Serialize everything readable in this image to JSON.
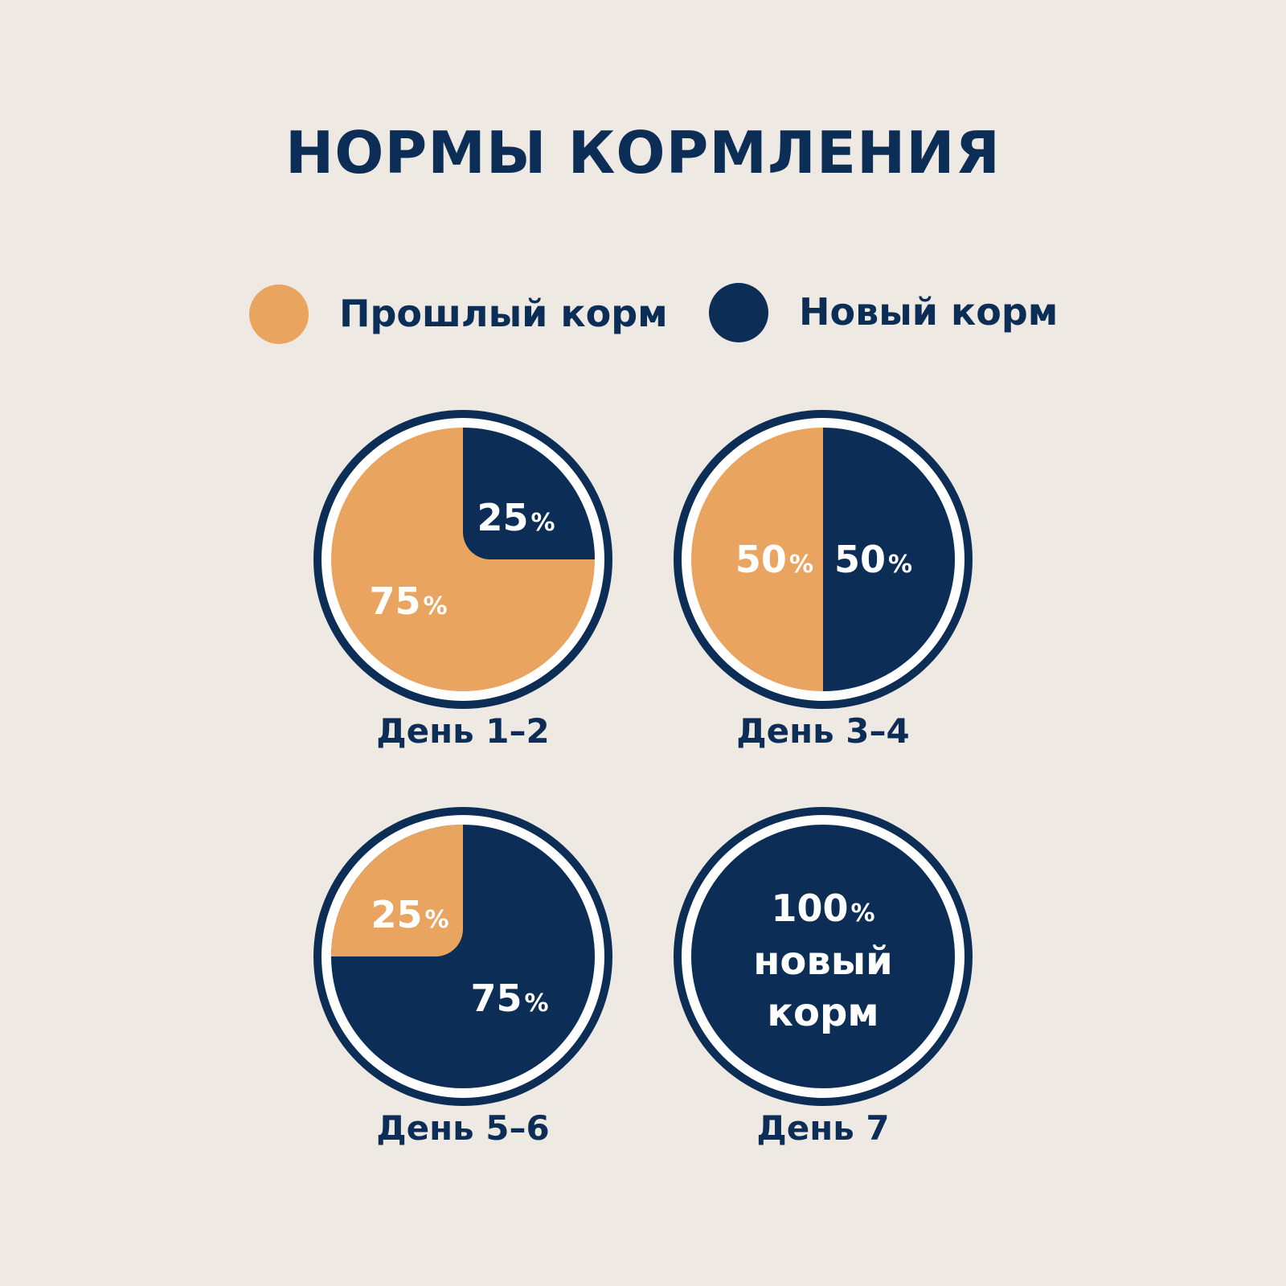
{
  "title": "НОРМЫ КОРМЛЕНИЯ",
  "colors": {
    "background": "#EEEAE3",
    "old_food": "#E9A45F",
    "new_food": "#0B2D56",
    "text_on_pie": "#FFFFFF"
  },
  "legend": [
    {
      "label": "Прошлый корм",
      "color": "#E9A45F"
    },
    {
      "label": "Новый корм",
      "color": "#0B2D56"
    }
  ],
  "chart_data": [
    {
      "type": "pie",
      "title": "День 1–2",
      "series": [
        {
          "name": "Прошлый корм",
          "value": 75,
          "label": "75"
        },
        {
          "name": "Новый корм",
          "value": 25,
          "label": "25"
        }
      ]
    },
    {
      "type": "pie",
      "title": "День 3–4",
      "series": [
        {
          "name": "Прошлый корм",
          "value": 50,
          "label": "50"
        },
        {
          "name": "Новый корм",
          "value": 50,
          "label": "50"
        }
      ]
    },
    {
      "type": "pie",
      "title": "День 5–6",
      "series": [
        {
          "name": "Прошлый корм",
          "value": 25,
          "label": "25"
        },
        {
          "name": "Новый корм",
          "value": 75,
          "label": "75"
        }
      ]
    },
    {
      "type": "pie",
      "title": "День 7",
      "series": [
        {
          "name": "Прошлый корм",
          "value": 0,
          "label": ""
        },
        {
          "name": "Новый корм",
          "value": 100,
          "label": "100"
        }
      ],
      "center_lines": [
        "100",
        "новый",
        "корм"
      ]
    }
  ],
  "percent_sign": "%"
}
